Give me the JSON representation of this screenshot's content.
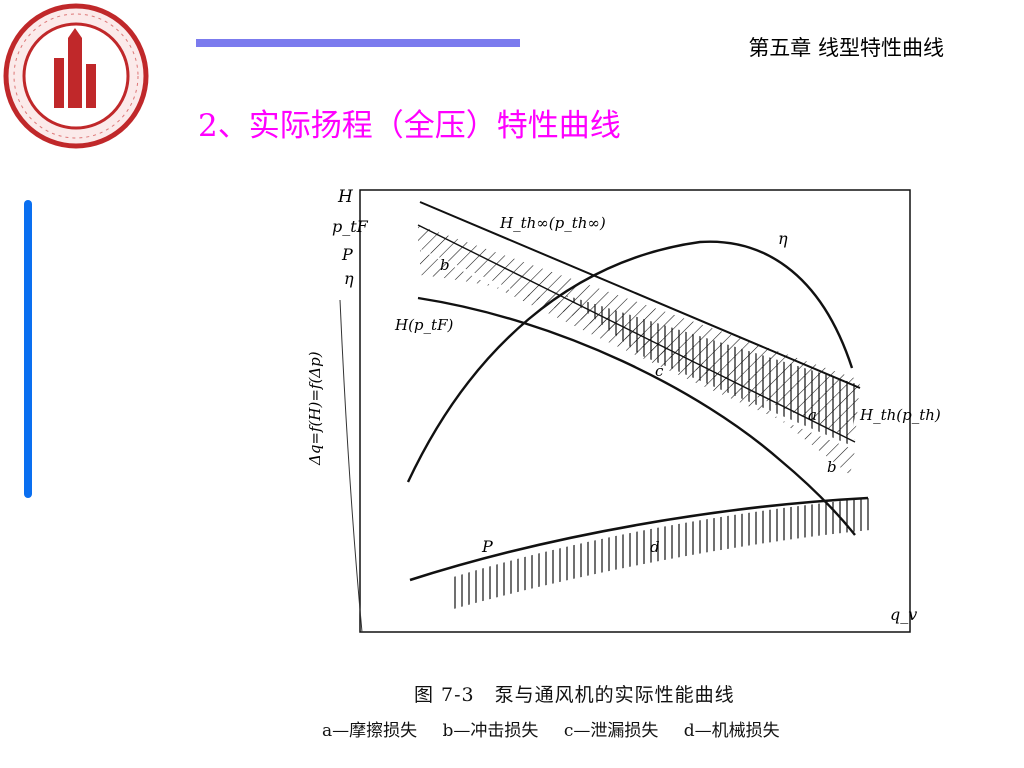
{
  "header": {
    "chapter": "第五章 线型特性曲线",
    "accent_bar_color": "#7b7bee",
    "side_bar_color": "#0a6ff0"
  },
  "title": "2、实际扬程（全压）特性曲线",
  "logo": {
    "icon": "university-seal-icon",
    "color": "#c0282a"
  },
  "figure": {
    "axis_labels": {
      "left": [
        "H",
        "p_tF",
        "P",
        "η"
      ],
      "vertical": "Δq=f(H)=f(Δp)",
      "x": "q_v"
    },
    "curves": {
      "h_theory_inf": "H_th∞(p_th∞)",
      "h_theory": "H_th(p_th)",
      "h_actual": "H(p_tF)",
      "efficiency": "η",
      "power": "P"
    },
    "region_letters": {
      "a": "a",
      "b_upper": "b",
      "b_lower": "b",
      "c": "c",
      "d": "d"
    },
    "caption": "图 7-3　泵与通风机的实际性能曲线",
    "legend": [
      "a—摩擦损失",
      "b—冲击损失",
      "c—泄漏损失",
      "d—机械损失"
    ]
  }
}
